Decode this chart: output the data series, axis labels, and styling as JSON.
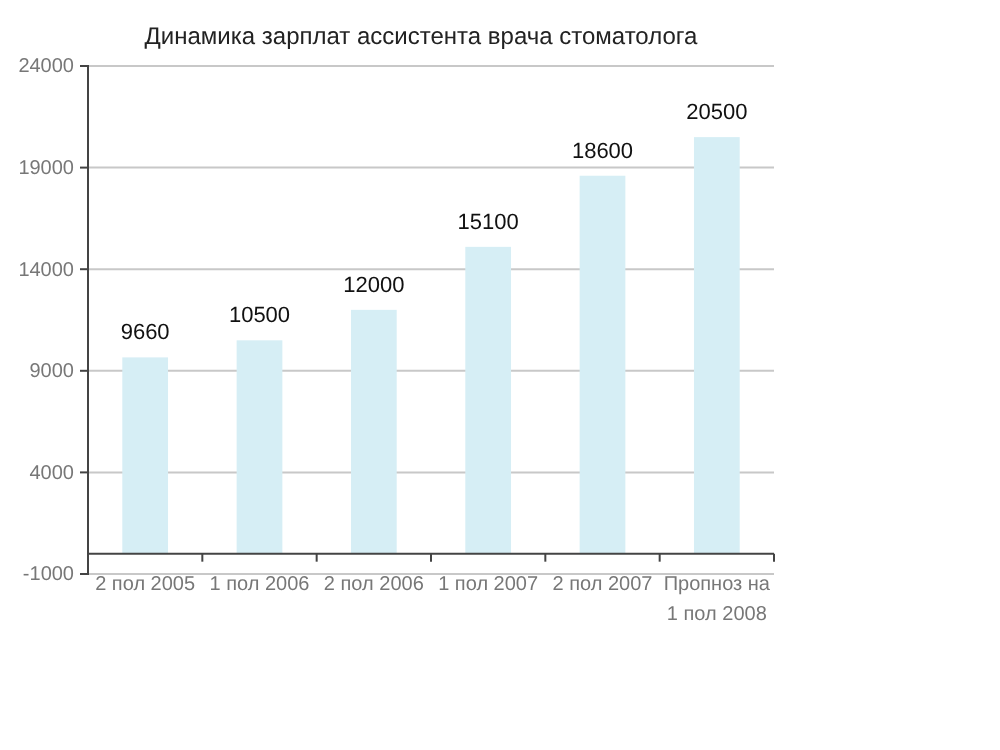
{
  "chart_data": {
    "type": "bar",
    "title": "Динамика зарплат ассистента врача стоматолога",
    "categories": [
      "2 пол 2005",
      "1 пол 2006",
      "2 пол 2006",
      "1 пол 2007",
      "2 пол 2007",
      "Пропноз на 1 пол 2008"
    ],
    "values": [
      9660,
      10500,
      12000,
      15100,
      18600,
      20500
    ],
    "color": "#d6eef5",
    "ylim": [
      -1000,
      24000
    ],
    "yticks": [
      -1000,
      4000,
      9000,
      14000,
      19000,
      24000
    ],
    "grid": "y",
    "data_labels": true
  }
}
